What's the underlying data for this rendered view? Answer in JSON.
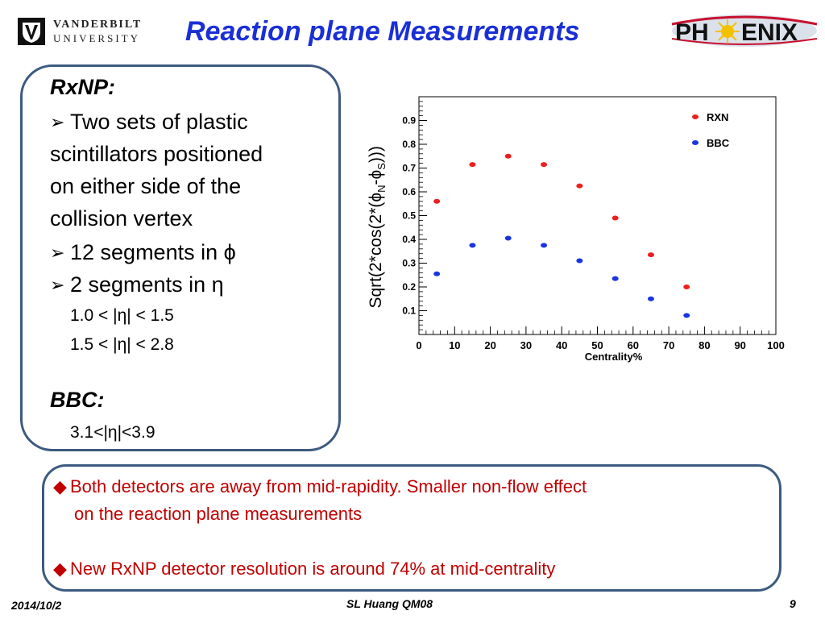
{
  "header": {
    "title": "Reaction plane  Measurements",
    "left_logo": {
      "line1": "VANDERBILT",
      "line2": "UNIVERSITY"
    },
    "right_logo": {
      "text_left": "PH",
      "text_right": "ENIX"
    }
  },
  "left_panel": {
    "rxnp_heading": "RxNP:",
    "bullet1_lines": [
      "Two sets of plastic",
      "scintillators positioned",
      "on either side of the",
      "collision vertex"
    ],
    "bullet2": "12 segments in ϕ",
    "bullet3": "2 segments in η",
    "range1": "1.0 < |η| < 1.5",
    "range2": "1.5 < |η| < 2.8",
    "bbc_heading": "BBC:",
    "bbc_range": "3.1<|η|<3.9",
    "bullet_symbol": "➢"
  },
  "chart_data": {
    "type": "scatter",
    "xlabel": "Centrality%",
    "ylabel_parts": {
      "main": "Sqrt(2*cos(2*(",
      "phi": "ϕ",
      "subN": "N",
      "dash": "-",
      "subS": "S",
      "end": ")))"
    },
    "xlim": [
      0,
      100
    ],
    "ylim": [
      0,
      1.0
    ],
    "x_ticks": [
      0,
      10,
      20,
      30,
      40,
      50,
      60,
      70,
      80,
      90,
      100
    ],
    "y_ticks": [
      0.1,
      0.2,
      0.3,
      0.4,
      0.5,
      0.6,
      0.7,
      0.8,
      0.9
    ],
    "legend_position": "top-right",
    "series": [
      {
        "name": "RXN",
        "color": "#e8211f",
        "x": [
          5,
          15,
          25,
          35,
          45,
          55,
          65,
          75
        ],
        "y": [
          0.56,
          0.715,
          0.75,
          0.715,
          0.625,
          0.49,
          0.335,
          0.2
        ]
      },
      {
        "name": "BBC",
        "color": "#1a35e0",
        "x": [
          5,
          15,
          25,
          35,
          45,
          55,
          65,
          75
        ],
        "y": [
          0.255,
          0.375,
          0.405,
          0.375,
          0.31,
          0.235,
          0.15,
          0.08
        ]
      }
    ]
  },
  "bottom_panel": {
    "bullet_symbol": "◆",
    "bullet1_line1": "Both  detectors are away from mid-rapidity. Smaller non-flow effect",
    "bullet1_line2": "on the reaction plane measurements",
    "bullet2": "New RxNP detector resolution is around 74% at mid-centrality"
  },
  "footer": {
    "date": "2014/10/2",
    "center": "SL Huang QM08",
    "page": "9"
  },
  "colors": {
    "title": "#1a2fd6",
    "box_border": "#3d5a80",
    "bottom_text": "#c00000"
  }
}
